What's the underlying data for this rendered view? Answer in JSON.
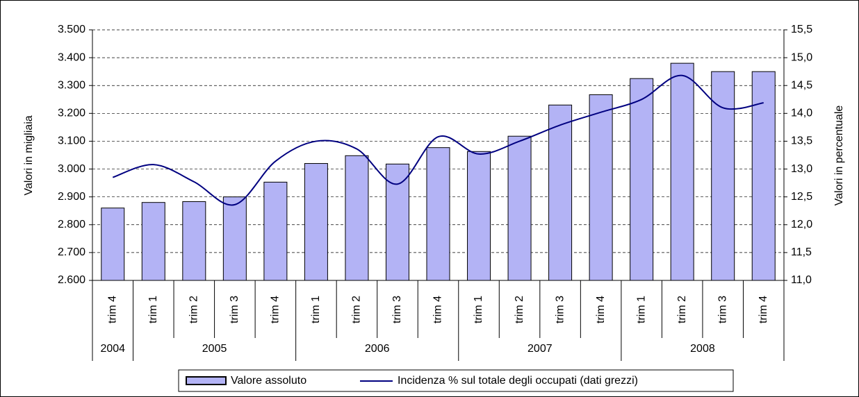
{
  "chart_data": {
    "type": "bar-line",
    "y_label": "Valori in migliaia",
    "y2_label": "Valori in percentuale",
    "category_groups": [
      {
        "name": "2004",
        "categories": [
          "trim 4"
        ]
      },
      {
        "name": "2005",
        "categories": [
          "trim 1",
          "trim 2",
          "trim 3",
          "trim 4"
        ]
      },
      {
        "name": "2006",
        "categories": [
          "trim 1",
          "trim 2",
          "trim 3",
          "trim 4"
        ]
      },
      {
        "name": "2007",
        "categories": [
          "trim 1",
          "trim 2",
          "trim 3",
          "trim 4"
        ]
      },
      {
        "name": "2008",
        "categories": [
          "trim 1",
          "trim 2",
          "trim 3",
          "trim 4"
        ]
      }
    ],
    "series": [
      {
        "name": "Valore assoluto",
        "type": "bar",
        "color": "#b3b3f5",
        "values": [
          2860,
          2880,
          2883,
          2900,
          2953,
          3020,
          3048,
          3018,
          3077,
          3063,
          3118,
          3230,
          3267,
          3325,
          3380,
          3350,
          3350
        ]
      },
      {
        "name": "Incidenza % sul totale degli occupati (dati grezzi)",
        "type": "line",
        "axis": "y2",
        "color": "#000080",
        "values": [
          12.85,
          13.08,
          12.77,
          12.36,
          13.14,
          13.5,
          13.36,
          12.73,
          13.58,
          13.27,
          13.5,
          13.79,
          14.02,
          14.25,
          14.68,
          14.1,
          14.19
        ]
      }
    ],
    "ylim": [
      2600,
      3500
    ],
    "yticks": [
      {
        "value": 2600,
        "label": "2.600"
      },
      {
        "value": 2700,
        "label": "2.700"
      },
      {
        "value": 2800,
        "label": "2.800"
      },
      {
        "value": 2900,
        "label": "2.900"
      },
      {
        "value": 3000,
        "label": "3.000"
      },
      {
        "value": 3100,
        "label": "3.100"
      },
      {
        "value": 3200,
        "label": "3.200"
      },
      {
        "value": 3300,
        "label": "3.300"
      },
      {
        "value": 3400,
        "label": "3.400"
      },
      {
        "value": 3500,
        "label": "3.500"
      }
    ],
    "y2lim": [
      11,
      15.5
    ],
    "y2ticks": [
      {
        "value": 11,
        "label": "11,0"
      },
      {
        "value": 11.5,
        "label": "11,5"
      },
      {
        "value": 12,
        "label": "12,0"
      },
      {
        "value": 12.5,
        "label": "12,5"
      },
      {
        "value": 13,
        "label": "13,0"
      },
      {
        "value": 13.5,
        "label": "13,5"
      },
      {
        "value": 14,
        "label": "14,0"
      },
      {
        "value": 14.5,
        "label": "14,5"
      },
      {
        "value": 15,
        "label": "15,0"
      },
      {
        "value": 15.5,
        "label": "15,5"
      }
    ],
    "grid": true
  }
}
